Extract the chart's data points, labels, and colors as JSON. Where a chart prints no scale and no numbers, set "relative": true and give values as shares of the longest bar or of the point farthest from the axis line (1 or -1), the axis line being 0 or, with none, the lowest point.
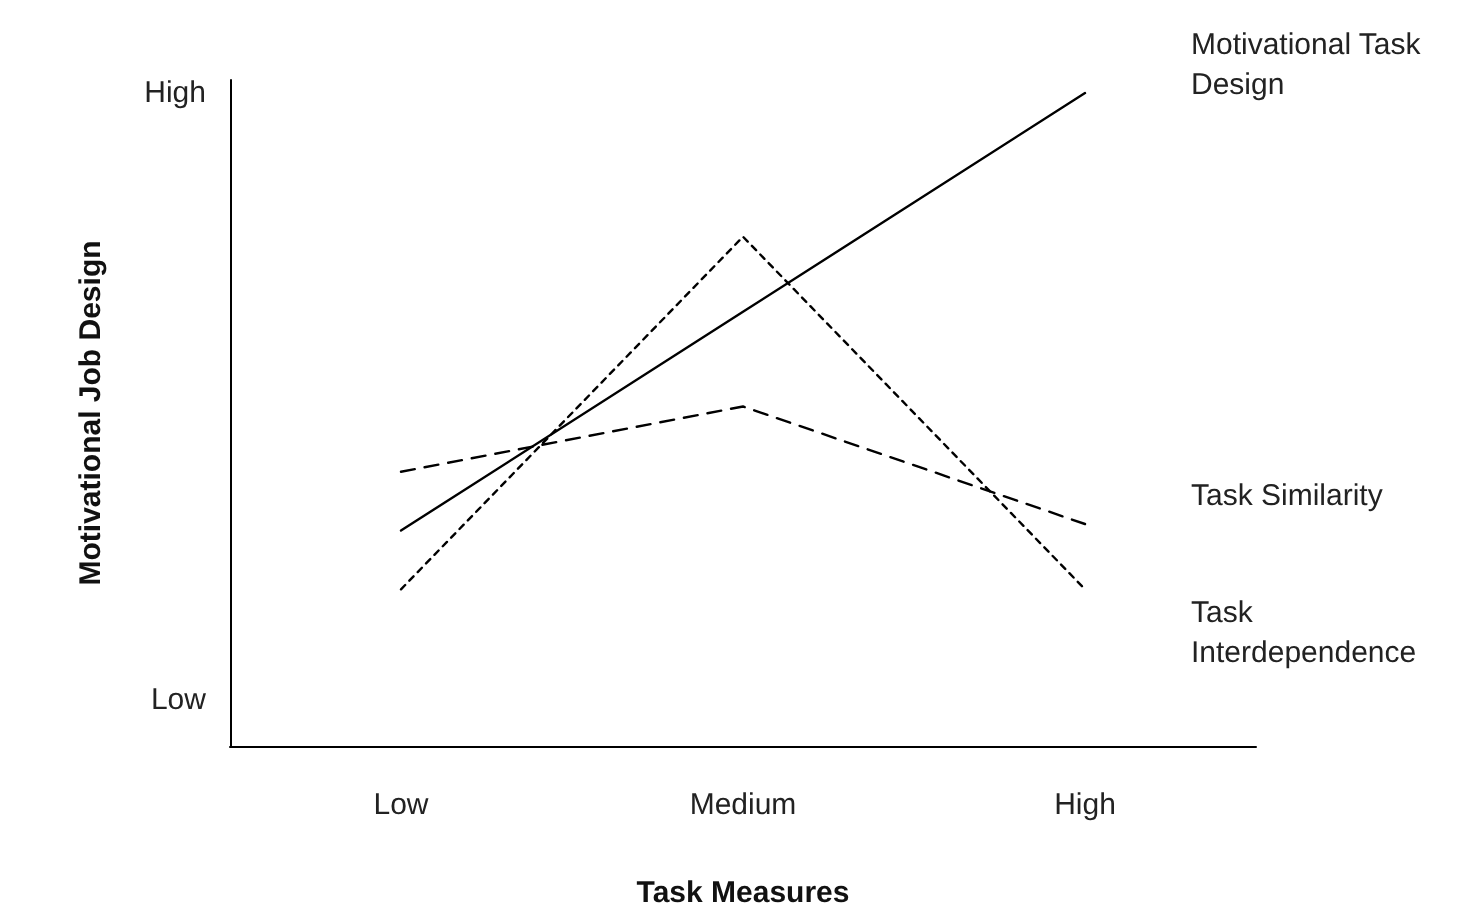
{
  "chart_data": {
    "type": "line",
    "xlabel": "Task Measures",
    "ylabel": "Motivational Job Design",
    "relative": true,
    "categories": [
      "Low",
      "Medium",
      "High"
    ],
    "annotations": [
      "High",
      "Low"
    ],
    "series": [
      {
        "name": "Motivational Task Design",
        "color": "#000000",
        "line_style": "solid",
        "values": [
          0.33,
          0.665,
          1.0
        ]
      },
      {
        "name": "Task Similarity",
        "color": "#000000",
        "line_style": "dashed",
        "values": [
          0.42,
          0.52,
          0.34
        ]
      },
      {
        "name": "Task Interdependence",
        "color": "#000000",
        "line_style": "dotted",
        "values": [
          0.24,
          0.78,
          0.24
        ]
      }
    ],
    "legend": false,
    "grid": false,
    "marker": "none"
  }
}
